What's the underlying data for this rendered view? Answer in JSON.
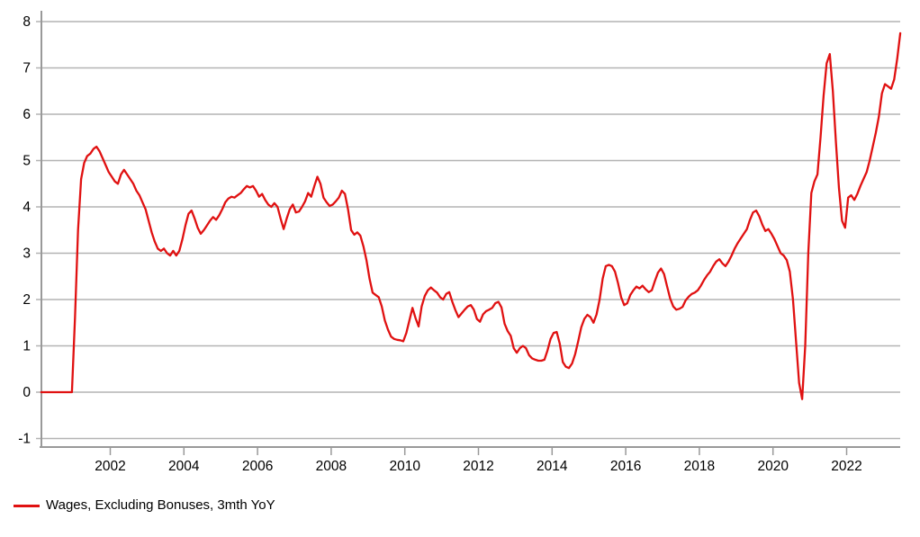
{
  "legend": {
    "label": "Wages, Excluding Bonuses, 3mth YoY"
  },
  "colors": {
    "series_red": "#e01111",
    "gridline_gray": "#b3b3b3",
    "axis_gray": "#999999",
    "tick_text_black": "#000000",
    "background": "#ffffff"
  },
  "chart_data": {
    "type": "line",
    "title": "",
    "xlabel": "",
    "ylabel": "",
    "grid": true,
    "legend_position": "bottom-left",
    "x_ticks": [
      2002,
      2004,
      2006,
      2008,
      2010,
      2012,
      2014,
      2016,
      2018,
      2020,
      2022
    ],
    "y_ticks": [
      -1,
      0,
      1,
      2,
      3,
      4,
      5,
      6,
      7,
      8
    ],
    "xlim": [
      2000.05,
      2023.55
    ],
    "ylim": [
      -1.4,
      8.3
    ],
    "series": [
      {
        "name": "Wages, Excluding Bonuses, 3mth YoY",
        "color": "#e01111",
        "x_start": 2000.125,
        "x_step": 0.0833333,
        "values": [
          0,
          0,
          0,
          0,
          0,
          0,
          0,
          0,
          0,
          0,
          0,
          1.6,
          3.5,
          4.6,
          4.95,
          5.1,
          5.15,
          5.25,
          5.3,
          5.2,
          5.05,
          4.9,
          4.75,
          4.65,
          4.55,
          4.5,
          4.7,
          4.8,
          4.7,
          4.6,
          4.5,
          4.35,
          4.25,
          4.1,
          3.95,
          3.7,
          3.45,
          3.25,
          3.1,
          3.05,
          3.1,
          3.0,
          2.95,
          3.05,
          2.95,
          3.05,
          3.3,
          3.6,
          3.85,
          3.92,
          3.75,
          3.55,
          3.42,
          3.5,
          3.6,
          3.7,
          3.78,
          3.72,
          3.82,
          3.95,
          4.1,
          4.18,
          4.22,
          4.2,
          4.25,
          4.3,
          4.38,
          4.45,
          4.42,
          4.45,
          4.35,
          4.22,
          4.28,
          4.15,
          4.05,
          4.0,
          4.08,
          4.0,
          3.75,
          3.52,
          3.75,
          3.95,
          4.05,
          3.88,
          3.9,
          4.0,
          4.12,
          4.3,
          4.22,
          4.45,
          4.65,
          4.5,
          4.2,
          4.1,
          4.02,
          4.05,
          4.12,
          4.2,
          4.35,
          4.28,
          3.95,
          3.5,
          3.4,
          3.45,
          3.38,
          3.15,
          2.85,
          2.45,
          2.15,
          2.1,
          2.05,
          1.85,
          1.55,
          1.35,
          1.2,
          1.15,
          1.13,
          1.12,
          1.1,
          1.28,
          1.55,
          1.82,
          1.6,
          1.42,
          1.85,
          2.08,
          2.2,
          2.26,
          2.2,
          2.15,
          2.05,
          2.0,
          2.12,
          2.16,
          1.95,
          1.77,
          1.62,
          1.7,
          1.78,
          1.85,
          1.88,
          1.78,
          1.58,
          1.52,
          1.68,
          1.75,
          1.78,
          1.82,
          1.92,
          1.95,
          1.83,
          1.48,
          1.32,
          1.22,
          0.95,
          0.85,
          0.95,
          1.0,
          0.95,
          0.8,
          0.73,
          0.7,
          0.68,
          0.68,
          0.7,
          0.9,
          1.15,
          1.28,
          1.3,
          1.05,
          0.65,
          0.55,
          0.52,
          0.62,
          0.82,
          1.1,
          1.4,
          1.58,
          1.67,
          1.62,
          1.5,
          1.68,
          2.0,
          2.45,
          2.72,
          2.75,
          2.72,
          2.6,
          2.35,
          2.05,
          1.88,
          1.92,
          2.1,
          2.2,
          2.28,
          2.24,
          2.3,
          2.22,
          2.16,
          2.2,
          2.4,
          2.58,
          2.67,
          2.55,
          2.28,
          2.02,
          1.85,
          1.78,
          1.8,
          1.84,
          1.98,
          2.06,
          2.12,
          2.15,
          2.2,
          2.3,
          2.42,
          2.52,
          2.6,
          2.72,
          2.82,
          2.87,
          2.78,
          2.72,
          2.82,
          2.95,
          3.1,
          3.22,
          3.32,
          3.42,
          3.52,
          3.72,
          3.88,
          3.92,
          3.8,
          3.62,
          3.48,
          3.52,
          3.42,
          3.3,
          3.15,
          3.0,
          2.95,
          2.85,
          2.6,
          2.0,
          1.1,
          0.2,
          -0.15,
          1.0,
          3.0,
          4.3,
          4.55,
          4.7,
          5.5,
          6.4,
          7.1,
          7.3,
          6.5,
          5.4,
          4.4,
          3.7,
          3.55,
          4.2,
          4.25,
          4.15,
          4.28,
          4.45,
          4.6,
          4.75,
          5.0,
          5.3,
          5.6,
          5.95,
          6.45,
          6.65,
          6.6,
          6.55,
          6.75,
          7.2,
          7.75
        ]
      }
    ]
  }
}
